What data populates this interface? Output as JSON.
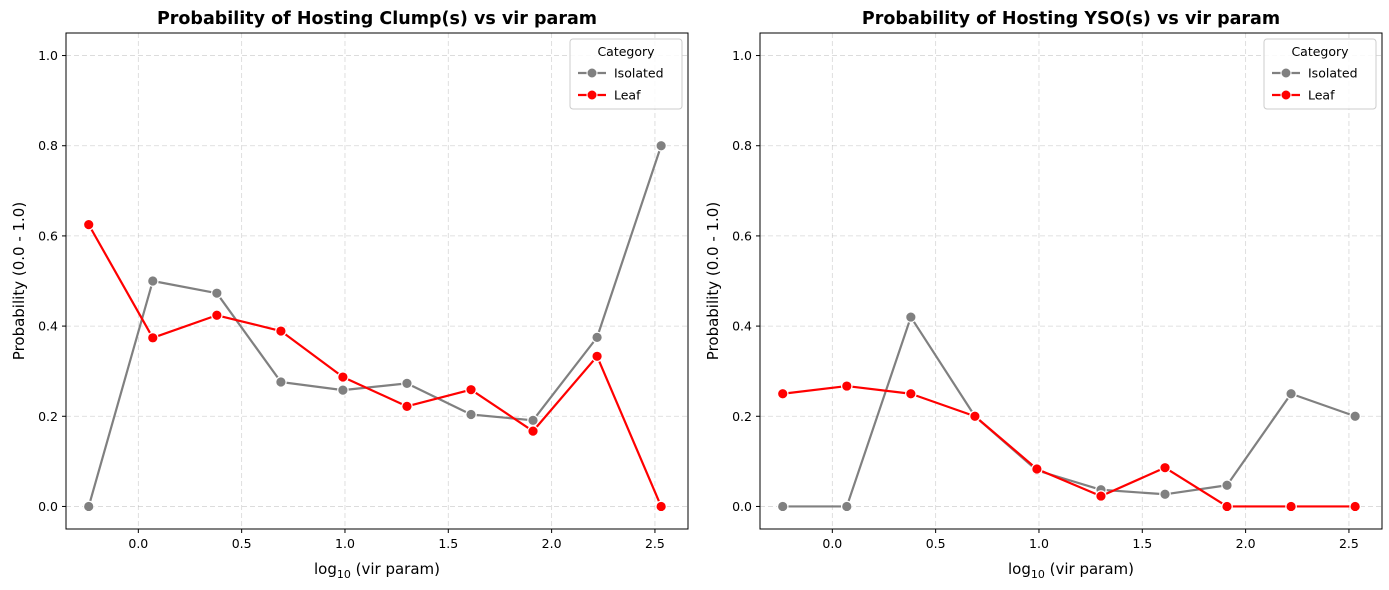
{
  "chart_data": [
    {
      "type": "line",
      "title": "Probability of Hosting Clump(s) vs vir param",
      "xlabel_prefix": "log",
      "xlabel_sub": "10",
      "xlabel_suffix": " (vir param)",
      "ylabel": "Probability (0.0 - 1.0)",
      "xlim": [
        -0.35,
        2.66
      ],
      "ylim": [
        -0.05,
        1.05
      ],
      "xticks": [
        0.0,
        0.5,
        1.0,
        1.5,
        2.0,
        2.5
      ],
      "xtick_labels": [
        "0.0",
        "0.5",
        "1.0",
        "1.5",
        "2.0",
        "2.5"
      ],
      "yticks": [
        0.0,
        0.2,
        0.4,
        0.6,
        0.8,
        1.0
      ],
      "ytick_labels": [
        "0.0",
        "0.2",
        "0.4",
        "0.6",
        "0.8",
        "1.0"
      ],
      "grid": true,
      "legend_title": "Category",
      "legend_position": "top-right",
      "x": [
        -0.24,
        0.07,
        0.38,
        0.69,
        0.99,
        1.3,
        1.61,
        1.91,
        2.22,
        2.53
      ],
      "series": [
        {
          "name": "Isolated",
          "color": "#808080",
          "values": [
            0.0,
            0.5,
            0.473,
            0.276,
            0.258,
            0.273,
            0.204,
            0.191,
            0.375,
            0.8
          ]
        },
        {
          "name": "Leaf",
          "color": "#ff0000",
          "values": [
            0.625,
            0.374,
            0.424,
            0.389,
            0.287,
            0.222,
            0.259,
            0.167,
            0.333,
            0.0
          ]
        }
      ]
    },
    {
      "type": "line",
      "title": "Probability of Hosting YSO(s) vs vir param",
      "xlabel_prefix": "log",
      "xlabel_sub": "10",
      "xlabel_suffix": " (vir param)",
      "ylabel": "Probability (0.0 - 1.0)",
      "xlim": [
        -0.35,
        2.66
      ],
      "ylim": [
        -0.05,
        1.05
      ],
      "xticks": [
        0.0,
        0.5,
        1.0,
        1.5,
        2.0,
        2.5
      ],
      "xtick_labels": [
        "0.0",
        "0.5",
        "1.0",
        "1.5",
        "2.0",
        "2.5"
      ],
      "yticks": [
        0.0,
        0.2,
        0.4,
        0.6,
        0.8,
        1.0
      ],
      "ytick_labels": [
        "0.0",
        "0.2",
        "0.4",
        "0.6",
        "0.8",
        "1.0"
      ],
      "grid": true,
      "legend_title": "Category",
      "legend_position": "top-right",
      "x": [
        -0.24,
        0.07,
        0.38,
        0.69,
        0.99,
        1.3,
        1.61,
        1.91,
        2.22,
        2.53
      ],
      "series": [
        {
          "name": "Isolated",
          "color": "#808080",
          "values": [
            0.0,
            0.0,
            0.42,
            0.2,
            0.08,
            0.037,
            0.027,
            0.047,
            0.25,
            0.2
          ]
        },
        {
          "name": "Leaf",
          "color": "#ff0000",
          "values": [
            0.25,
            0.267,
            0.25,
            0.2,
            0.083,
            0.023,
            0.086,
            0.0,
            0.0,
            0.0
          ]
        }
      ]
    }
  ]
}
